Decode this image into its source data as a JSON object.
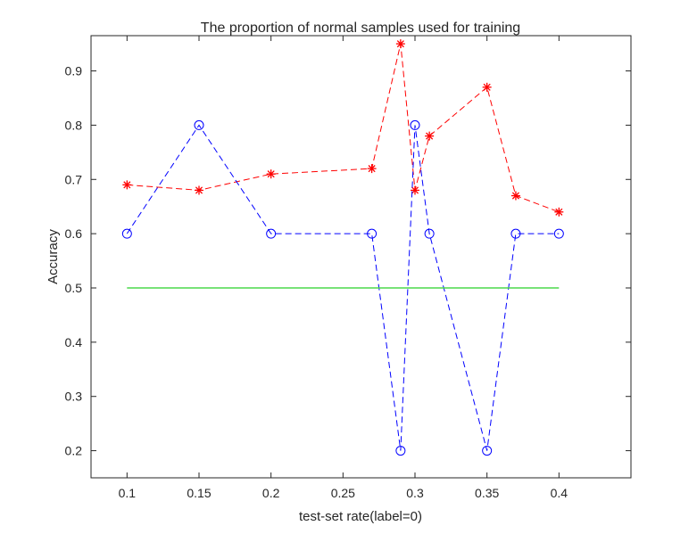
{
  "chart_data": {
    "type": "line",
    "title": "The proportion of normal samples used for training",
    "xlabel": "test-set rate(label=0)",
    "ylabel": "Accuracy",
    "xlim": [
      0.075,
      0.45
    ],
    "ylim": [
      0.15,
      0.965
    ],
    "xticks": [
      0.1,
      0.15,
      0.2,
      0.25,
      0.3,
      0.35,
      0.4
    ],
    "xtick_labels": [
      "0.1",
      "0.15",
      "0.2",
      "0.25",
      "0.3",
      "0.35",
      "0.4"
    ],
    "yticks": [
      0.2,
      0.3,
      0.4,
      0.5,
      0.6,
      0.7,
      0.8,
      0.9
    ],
    "ytick_labels": [
      "0.2",
      "0.3",
      "0.4",
      "0.5",
      "0.6",
      "0.7",
      "0.8",
      "0.9"
    ],
    "grid": false,
    "legend": "none",
    "series": [
      {
        "color": "#ff0000",
        "line_style": "dashed",
        "marker": "asterisk",
        "x": [
          0.1,
          0.15,
          0.2,
          0.27,
          0.29,
          0.3,
          0.31,
          0.35,
          0.37,
          0.4
        ],
        "y": [
          0.69,
          0.68,
          0.71,
          0.72,
          0.95,
          0.68,
          0.78,
          0.87,
          0.67,
          0.64
        ]
      },
      {
        "color": "#0000ff",
        "line_style": "dashed",
        "marker": "circle",
        "x": [
          0.1,
          0.15,
          0.2,
          0.27,
          0.29,
          0.3,
          0.31,
          0.35,
          0.37,
          0.4
        ],
        "y": [
          0.6,
          0.8,
          0.6,
          0.6,
          0.2,
          0.8,
          0.6,
          0.2,
          0.6,
          0.6
        ]
      },
      {
        "color": "#4cd94c",
        "line_style": "solid",
        "marker": "none",
        "x": [
          0.1,
          0.4
        ],
        "y": [
          0.5,
          0.5
        ]
      }
    ]
  }
}
